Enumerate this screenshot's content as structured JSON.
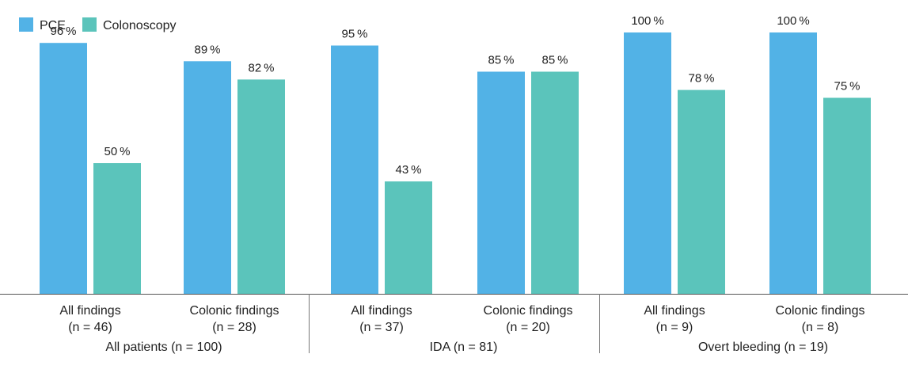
{
  "chart_data": {
    "type": "bar",
    "ylim": [
      0,
      110
    ],
    "legend_position": "top-left",
    "grid": false,
    "series": [
      {
        "name": "PCE",
        "color": "#52b2e6",
        "values": [
          96,
          89,
          95,
          85,
          100,
          100
        ]
      },
      {
        "name": "Colonoscopy",
        "color": "#5bc4bb",
        "values": [
          50,
          82,
          43,
          85,
          78,
          75
        ]
      }
    ],
    "categories": [
      {
        "label": "All findings",
        "n": "(n = 46)"
      },
      {
        "label": "Colonic findings",
        "n": "(n = 28)"
      },
      {
        "label": "All findings",
        "n": "(n = 37)"
      },
      {
        "label": "Colonic findings",
        "n": "(n = 20)"
      },
      {
        "label": "All findings",
        "n": "(n = 9)"
      },
      {
        "label": "Colonic findings",
        "n": "(n = 8)"
      }
    ],
    "groups": [
      {
        "label": "All patients (n = 100)",
        "categories": [
          0,
          1
        ]
      },
      {
        "label": "IDA (n = 81)",
        "categories": [
          2,
          3
        ]
      },
      {
        "label": "Overt bleeding (n = 19)",
        "categories": [
          4,
          5
        ]
      }
    ],
    "value_suffix": " %"
  }
}
